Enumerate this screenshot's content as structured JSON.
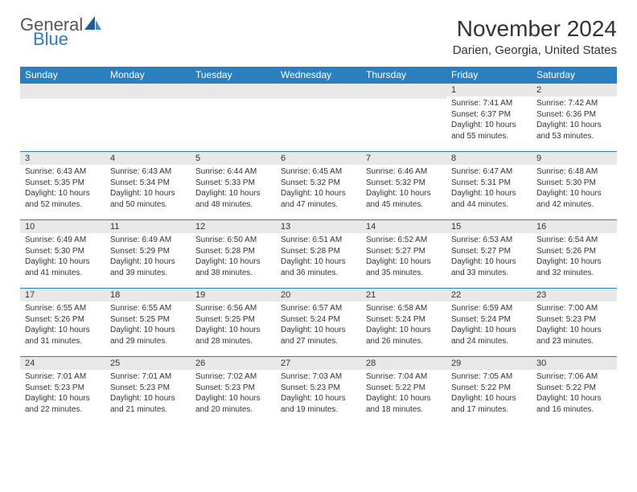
{
  "logo": {
    "part1": "General",
    "part2": "Blue"
  },
  "title": "November 2024",
  "location": "Darien, Georgia, United States",
  "colors": {
    "header_bg": "#2a7fbf",
    "header_text": "#ffffff",
    "daynum_bg": "#e8e8e8",
    "border": "#2a7fbf",
    "text": "#333333",
    "logo_gray": "#555555",
    "logo_blue": "#2a7fbf"
  },
  "weekdays": [
    "Sunday",
    "Monday",
    "Tuesday",
    "Wednesday",
    "Thursday",
    "Friday",
    "Saturday"
  ],
  "weeks": [
    [
      {
        "n": "",
        "lines": []
      },
      {
        "n": "",
        "lines": []
      },
      {
        "n": "",
        "lines": []
      },
      {
        "n": "",
        "lines": []
      },
      {
        "n": "",
        "lines": []
      },
      {
        "n": "1",
        "lines": [
          "Sunrise: 7:41 AM",
          "Sunset: 6:37 PM",
          "Daylight: 10 hours and 55 minutes."
        ]
      },
      {
        "n": "2",
        "lines": [
          "Sunrise: 7:42 AM",
          "Sunset: 6:36 PM",
          "Daylight: 10 hours and 53 minutes."
        ]
      }
    ],
    [
      {
        "n": "3",
        "lines": [
          "Sunrise: 6:43 AM",
          "Sunset: 5:35 PM",
          "Daylight: 10 hours and 52 minutes."
        ]
      },
      {
        "n": "4",
        "lines": [
          "Sunrise: 6:43 AM",
          "Sunset: 5:34 PM",
          "Daylight: 10 hours and 50 minutes."
        ]
      },
      {
        "n": "5",
        "lines": [
          "Sunrise: 6:44 AM",
          "Sunset: 5:33 PM",
          "Daylight: 10 hours and 48 minutes."
        ]
      },
      {
        "n": "6",
        "lines": [
          "Sunrise: 6:45 AM",
          "Sunset: 5:32 PM",
          "Daylight: 10 hours and 47 minutes."
        ]
      },
      {
        "n": "7",
        "lines": [
          "Sunrise: 6:46 AM",
          "Sunset: 5:32 PM",
          "Daylight: 10 hours and 45 minutes."
        ]
      },
      {
        "n": "8",
        "lines": [
          "Sunrise: 6:47 AM",
          "Sunset: 5:31 PM",
          "Daylight: 10 hours and 44 minutes."
        ]
      },
      {
        "n": "9",
        "lines": [
          "Sunrise: 6:48 AM",
          "Sunset: 5:30 PM",
          "Daylight: 10 hours and 42 minutes."
        ]
      }
    ],
    [
      {
        "n": "10",
        "lines": [
          "Sunrise: 6:49 AM",
          "Sunset: 5:30 PM",
          "Daylight: 10 hours and 41 minutes."
        ]
      },
      {
        "n": "11",
        "lines": [
          "Sunrise: 6:49 AM",
          "Sunset: 5:29 PM",
          "Daylight: 10 hours and 39 minutes."
        ]
      },
      {
        "n": "12",
        "lines": [
          "Sunrise: 6:50 AM",
          "Sunset: 5:28 PM",
          "Daylight: 10 hours and 38 minutes."
        ]
      },
      {
        "n": "13",
        "lines": [
          "Sunrise: 6:51 AM",
          "Sunset: 5:28 PM",
          "Daylight: 10 hours and 36 minutes."
        ]
      },
      {
        "n": "14",
        "lines": [
          "Sunrise: 6:52 AM",
          "Sunset: 5:27 PM",
          "Daylight: 10 hours and 35 minutes."
        ]
      },
      {
        "n": "15",
        "lines": [
          "Sunrise: 6:53 AM",
          "Sunset: 5:27 PM",
          "Daylight: 10 hours and 33 minutes."
        ]
      },
      {
        "n": "16",
        "lines": [
          "Sunrise: 6:54 AM",
          "Sunset: 5:26 PM",
          "Daylight: 10 hours and 32 minutes."
        ]
      }
    ],
    [
      {
        "n": "17",
        "lines": [
          "Sunrise: 6:55 AM",
          "Sunset: 5:26 PM",
          "Daylight: 10 hours and 31 minutes."
        ]
      },
      {
        "n": "18",
        "lines": [
          "Sunrise: 6:55 AM",
          "Sunset: 5:25 PM",
          "Daylight: 10 hours and 29 minutes."
        ]
      },
      {
        "n": "19",
        "lines": [
          "Sunrise: 6:56 AM",
          "Sunset: 5:25 PM",
          "Daylight: 10 hours and 28 minutes."
        ]
      },
      {
        "n": "20",
        "lines": [
          "Sunrise: 6:57 AM",
          "Sunset: 5:24 PM",
          "Daylight: 10 hours and 27 minutes."
        ]
      },
      {
        "n": "21",
        "lines": [
          "Sunrise: 6:58 AM",
          "Sunset: 5:24 PM",
          "Daylight: 10 hours and 26 minutes."
        ]
      },
      {
        "n": "22",
        "lines": [
          "Sunrise: 6:59 AM",
          "Sunset: 5:24 PM",
          "Daylight: 10 hours and 24 minutes."
        ]
      },
      {
        "n": "23",
        "lines": [
          "Sunrise: 7:00 AM",
          "Sunset: 5:23 PM",
          "Daylight: 10 hours and 23 minutes."
        ]
      }
    ],
    [
      {
        "n": "24",
        "lines": [
          "Sunrise: 7:01 AM",
          "Sunset: 5:23 PM",
          "Daylight: 10 hours and 22 minutes."
        ]
      },
      {
        "n": "25",
        "lines": [
          "Sunrise: 7:01 AM",
          "Sunset: 5:23 PM",
          "Daylight: 10 hours and 21 minutes."
        ]
      },
      {
        "n": "26",
        "lines": [
          "Sunrise: 7:02 AM",
          "Sunset: 5:23 PM",
          "Daylight: 10 hours and 20 minutes."
        ]
      },
      {
        "n": "27",
        "lines": [
          "Sunrise: 7:03 AM",
          "Sunset: 5:23 PM",
          "Daylight: 10 hours and 19 minutes."
        ]
      },
      {
        "n": "28",
        "lines": [
          "Sunrise: 7:04 AM",
          "Sunset: 5:22 PM",
          "Daylight: 10 hours and 18 minutes."
        ]
      },
      {
        "n": "29",
        "lines": [
          "Sunrise: 7:05 AM",
          "Sunset: 5:22 PM",
          "Daylight: 10 hours and 17 minutes."
        ]
      },
      {
        "n": "30",
        "lines": [
          "Sunrise: 7:06 AM",
          "Sunset: 5:22 PM",
          "Daylight: 10 hours and 16 minutes."
        ]
      }
    ]
  ]
}
